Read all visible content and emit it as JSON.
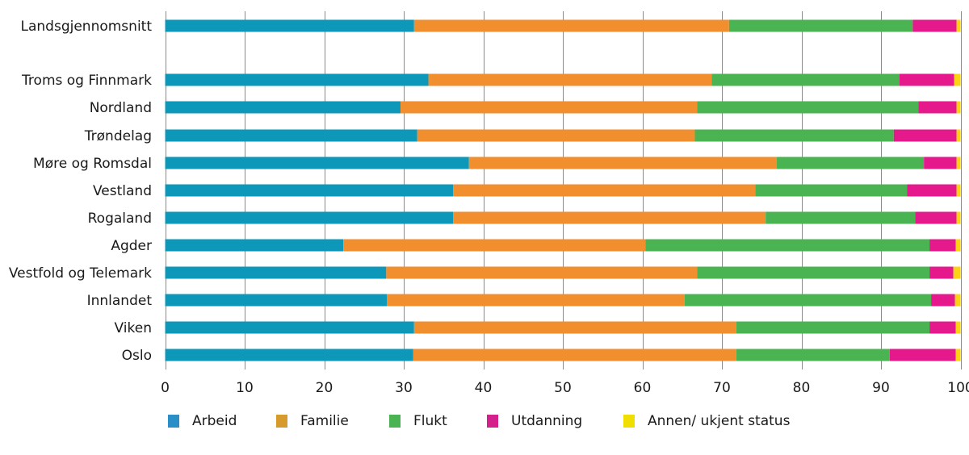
{
  "chart_data": {
    "type": "bar",
    "orientation": "horizontal",
    "stacked": true,
    "title": "",
    "xlabel": "",
    "ylabel": "",
    "xlim": [
      0,
      100
    ],
    "xticks": [
      0,
      10,
      20,
      30,
      40,
      50,
      60,
      70,
      80,
      90,
      100
    ],
    "grid": true,
    "legend_position": "bottom",
    "categories": [
      "Landsgjennomsnitt",
      "Troms og Finnmark",
      "Nordland",
      "Trøndelag",
      "Møre og Romsdal",
      "Vestland",
      "Rogaland",
      "Agder",
      "Vestfold og Telemark",
      "Innlandet",
      "Viken",
      "Oslo"
    ],
    "series": [
      {
        "name": "Arbeid",
        "color": "#0d97b8",
        "values": [
          31.3,
          33.1,
          29.6,
          31.7,
          38.2,
          36.2,
          36.2,
          22.4,
          27.8,
          27.9,
          31.3,
          31.2
        ]
      },
      {
        "name": "Familie",
        "color": "#f18e2e",
        "values": [
          39.6,
          35.6,
          37.3,
          34.9,
          38.7,
          38.0,
          39.3,
          38.0,
          39.1,
          37.4,
          40.5,
          40.6
        ]
      },
      {
        "name": "Flukt",
        "color": "#4bb452",
        "values": [
          23.1,
          23.6,
          27.8,
          25.0,
          18.5,
          19.1,
          18.8,
          35.7,
          29.2,
          31.0,
          24.3,
          19.3
        ]
      },
      {
        "name": "Utdanning",
        "color": "#e5198c",
        "values": [
          5.5,
          6.9,
          4.8,
          7.9,
          4.1,
          6.2,
          5.2,
          3.3,
          3.0,
          3.0,
          3.3,
          8.3
        ]
      },
      {
        "name": "Annen/ ukjent status",
        "color": "#fcd116",
        "values": [
          0.5,
          0.8,
          0.5,
          0.5,
          0.5,
          0.5,
          0.5,
          0.6,
          0.9,
          0.7,
          0.6,
          0.6
        ]
      }
    ],
    "legend_swatch_colors": [
      "#2a8fc6",
      "#d69a2d",
      "#4bb452",
      "#d4208a",
      "#f0de00"
    ]
  }
}
